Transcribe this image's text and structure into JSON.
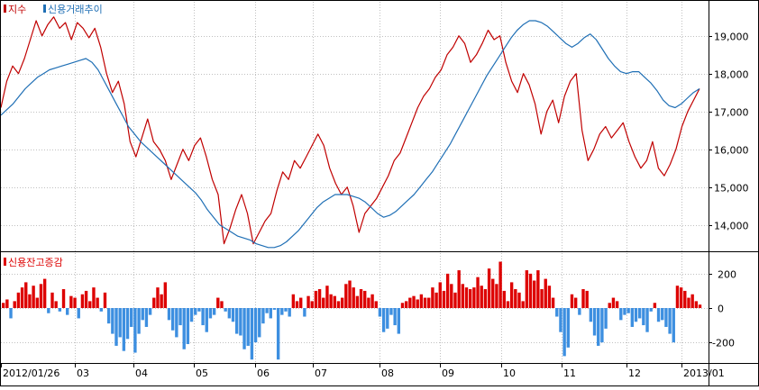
{
  "colors": {
    "index": "#c00000",
    "credit": "#1f6fb5",
    "bar_up": "#dd0000",
    "bar_down": "#3d8fe0",
    "grid": "#c0c0c0",
    "frame": "#000000",
    "background": "#ffffff"
  },
  "chart_data": [
    {
      "type": "line",
      "panel": "upper",
      "legend_position": "top-left",
      "series": [
        {
          "name": "지수",
          "color": "#c00000",
          "values": [
            17100,
            17800,
            18200,
            18000,
            18400,
            18900,
            19400,
            19000,
            19300,
            19500,
            19200,
            19350,
            18900,
            19350,
            19200,
            18950,
            19200,
            18700,
            18000,
            17500,
            17800,
            17200,
            16200,
            15800,
            16300,
            16800,
            16200,
            16000,
            15700,
            15200,
            15600,
            16000,
            15700,
            16100,
            16300,
            15800,
            15200,
            14800,
            13500,
            13900,
            14400,
            14800,
            14300,
            13500,
            13800,
            14100,
            14300,
            14900,
            15400,
            15200,
            15700,
            15500,
            15800,
            16100,
            16400,
            16100,
            15500,
            15100,
            14800,
            15000,
            14500,
            13800,
            14300,
            14500,
            14700,
            15000,
            15300,
            15700,
            15900,
            16300,
            16700,
            17100,
            17400,
            17600,
            17900,
            18100,
            18500,
            18700,
            19000,
            18800,
            18300,
            18500,
            18800,
            19150,
            18900,
            19000,
            18300,
            17800,
            17500,
            18000,
            17700,
            17200,
            16400,
            17000,
            17300,
            16700,
            17400,
            17800,
            18000,
            16500,
            15700,
            16000,
            16400,
            16600,
            16300,
            16500,
            16700,
            16200,
            15800,
            15500,
            15700,
            16200,
            15500,
            15300,
            15600,
            16000,
            16600,
            17000,
            17300,
            17600
          ]
        },
        {
          "name": "신용거래추이",
          "color": "#1f6fb5",
          "values": [
            16900,
            17050,
            17200,
            17400,
            17600,
            17750,
            17900,
            18000,
            18100,
            18150,
            18200,
            18250,
            18300,
            18350,
            18400,
            18300,
            18100,
            17800,
            17500,
            17200,
            16900,
            16600,
            16400,
            16200,
            16050,
            15900,
            15750,
            15600,
            15450,
            15300,
            15150,
            15000,
            14850,
            14650,
            14400,
            14200,
            14000,
            13900,
            13800,
            13700,
            13650,
            13600,
            13500,
            13450,
            13400,
            13400,
            13450,
            13550,
            13700,
            13850,
            14050,
            14250,
            14450,
            14600,
            14700,
            14800,
            14800,
            14800,
            14750,
            14700,
            14600,
            14450,
            14300,
            14200,
            14250,
            14350,
            14500,
            14650,
            14800,
            15000,
            15200,
            15400,
            15650,
            15900,
            16150,
            16450,
            16750,
            17050,
            17350,
            17650,
            17950,
            18200,
            18450,
            18700,
            18950,
            19150,
            19300,
            19400,
            19400,
            19350,
            19250,
            19100,
            18950,
            18800,
            18700,
            18800,
            18950,
            19050,
            18900,
            18650,
            18400,
            18200,
            18050,
            18000,
            18050,
            18050,
            17900,
            17750,
            17550,
            17300,
            17150,
            17100,
            17200,
            17350,
            17500,
            17600
          ]
        }
      ],
      "ylim": [
        13300,
        19900
      ],
      "yticks": [
        {
          "value": 14000,
          "label": "14,000"
        },
        {
          "value": 15000,
          "label": "15,000"
        },
        {
          "value": 16000,
          "label": "16,000"
        },
        {
          "value": 17000,
          "label": "17,000"
        },
        {
          "value": 18000,
          "label": "18,000"
        },
        {
          "value": 19000,
          "label": "19,000"
        }
      ],
      "grid": true
    },
    {
      "type": "bar",
      "panel": "lower",
      "legend_position": "top-left",
      "series": [
        {
          "name": "신용잔고증감",
          "values": [
            30,
            50,
            -60,
            40,
            90,
            120,
            150,
            80,
            130,
            60,
            140,
            170,
            -30,
            90,
            40,
            -20,
            110,
            -40,
            70,
            60,
            -60,
            80,
            100,
            40,
            120,
            60,
            -20,
            90,
            -90,
            -150,
            -220,
            -170,
            -250,
            -180,
            -110,
            -260,
            -150,
            -70,
            -110,
            -40,
            60,
            120,
            80,
            150,
            -70,
            -130,
            -170,
            -100,
            -240,
            -210,
            -80,
            -40,
            -20,
            -100,
            -140,
            -60,
            -40,
            60,
            40,
            -20,
            -60,
            -80,
            -150,
            -160,
            -240,
            -220,
            -300,
            -200,
            -170,
            -90,
            -30,
            -60,
            -10,
            -300,
            -40,
            -20,
            -50,
            80,
            40,
            60,
            -50,
            70,
            40,
            100,
            110,
            60,
            130,
            80,
            70,
            40,
            60,
            140,
            160,
            120,
            70,
            110,
            100,
            60,
            80,
            40,
            -50,
            -140,
            -120,
            -40,
            -100,
            -150,
            30,
            40,
            60,
            70,
            50,
            80,
            60,
            60,
            120,
            90,
            150,
            100,
            200,
            140,
            90,
            220,
            140,
            120,
            110,
            120,
            180,
            130,
            110,
            230,
            170,
            140,
            270,
            100,
            40,
            150,
            110,
            90,
            40,
            220,
            200,
            160,
            220,
            110,
            170,
            130,
            60,
            -50,
            -140,
            -280,
            -230,
            80,
            60,
            -40,
            110,
            100,
            -80,
            -160,
            -220,
            -200,
            -120,
            30,
            60,
            40,
            -70,
            -40,
            -30,
            -110,
            -80,
            -60,
            -100,
            -140,
            -20,
            30,
            -80,
            -70,
            -110,
            -150,
            -200,
            130,
            120,
            100,
            60,
            80,
            40,
            20
          ]
        }
      ],
      "ylim": [
        -320,
        320
      ],
      "yticks": [
        {
          "value": 200,
          "label": "200"
        },
        {
          "value": 0,
          "label": "0"
        },
        {
          "value": -200,
          "label": "-200"
        }
      ],
      "grid": true,
      "x_tick_labels": [
        "2012/01/26",
        "03",
        "04",
        "05",
        "06",
        "07",
        "08",
        "09",
        "10",
        "11",
        "12",
        "2013/01"
      ]
    }
  ]
}
